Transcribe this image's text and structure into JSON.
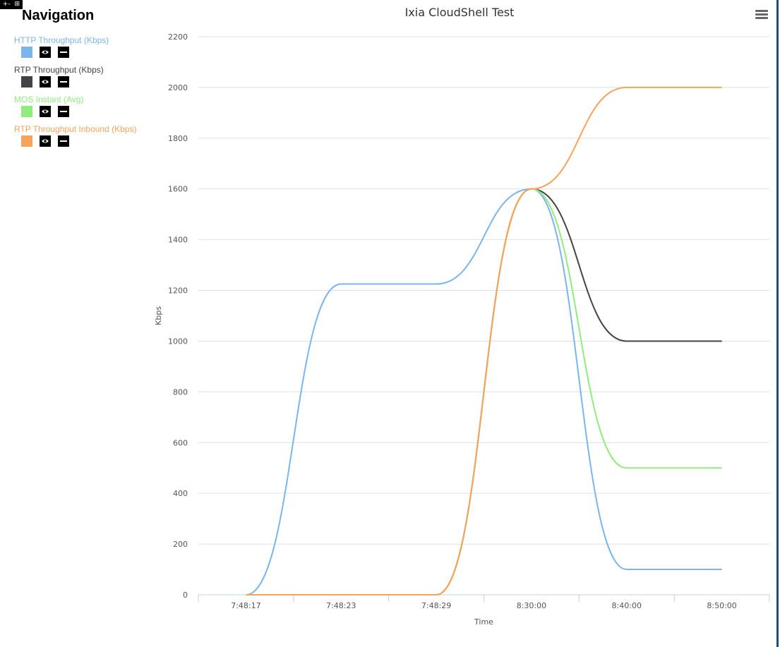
{
  "toolbar": {
    "expand_glyph": "+-",
    "grid_glyph": "⊞"
  },
  "navigation": {
    "title": "Navigation",
    "items": [
      {
        "label": "HTTP Throughput (Kbps)",
        "color": "#7cb5ec",
        "icon": "eye-icon"
      },
      {
        "label": "RTP Throughput (Kbps)",
        "color": "#434348",
        "icon": "eye-icon"
      },
      {
        "label": "MOS Instant (Avg)",
        "color": "#90ed7d",
        "icon": "eye-icon"
      },
      {
        "label": "RTP Throughput Inbound (Kbps)",
        "color": "#f7a35c",
        "icon": "eye-icon"
      }
    ]
  },
  "chart_data": {
    "type": "line",
    "title": "Ixia CloudShell Test",
    "xlabel": "Time",
    "ylabel": "Kbps",
    "categories": [
      "7:48:17",
      "7:48:23",
      "7:48:29",
      "8:30:00",
      "8:40:00",
      "8:50:00"
    ],
    "ylim": [
      0,
      2200
    ],
    "yticks": [
      0,
      200,
      400,
      600,
      800,
      1000,
      1200,
      1400,
      1600,
      1800,
      2000,
      2200
    ],
    "grid": true,
    "legend": "left-panel",
    "series": [
      {
        "name": "HTTP Throughput (Kbps)",
        "color": "#7cb5ec",
        "values": [
          0,
          1225,
          1225,
          1600,
          100,
          100
        ]
      },
      {
        "name": "RTP Throughput (Kbps)",
        "color": "#434348",
        "values": [
          0,
          0,
          0,
          1600,
          1000,
          1000
        ]
      },
      {
        "name": "MOS Instant (Avg)",
        "color": "#90ed7d",
        "values": [
          0,
          0,
          0,
          1600,
          500,
          500
        ]
      },
      {
        "name": "RTP Throughput Inbound (Kbps)",
        "color": "#f7a35c",
        "values": [
          0,
          0,
          0,
          1600,
          2000,
          2000
        ]
      }
    ]
  }
}
